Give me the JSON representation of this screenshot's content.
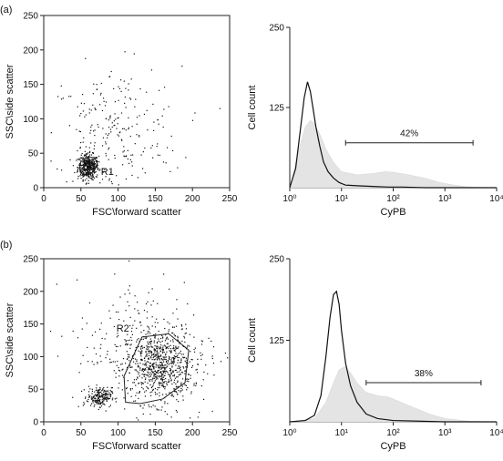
{
  "panels": [
    {
      "label": "(a)",
      "scatter": {
        "type": "scatter",
        "xlabel": "FSC\\forward scatter",
        "ylabel": "SSC\\side scatter",
        "xlim": [
          0,
          250
        ],
        "ylim": [
          0,
          250
        ],
        "xticks": [
          0,
          50,
          100,
          150,
          200,
          250
        ],
        "yticks": [
          0,
          50,
          100,
          150,
          200,
          250
        ],
        "gate_label": "R1",
        "gate_polygon": [
          [
            52,
            20
          ],
          [
            48,
            28
          ],
          [
            50,
            38
          ],
          [
            58,
            44
          ],
          [
            68,
            44
          ],
          [
            72,
            36
          ],
          [
            68,
            24
          ],
          [
            60,
            18
          ]
        ],
        "clusters": [
          {
            "cx": 60,
            "cy": 30,
            "sx": 7,
            "sy": 9,
            "n": 420
          },
          {
            "cx": 95,
            "cy": 75,
            "sx": 45,
            "sy": 50,
            "n": 260
          }
        ]
      },
      "histogram": {
        "type": "area",
        "xlabel": "CyPB",
        "ylabel": "Cell count",
        "xscale": "log",
        "xlim": [
          1,
          10000
        ],
        "ylim": [
          0,
          250
        ],
        "xticks": [
          "10⁰",
          "10¹",
          "10²",
          "10³",
          "10⁴"
        ],
        "yticks": [
          125,
          250
        ],
        "control_series": {
          "x": [
            1,
            1.3,
            1.6,
            1.9,
            2.2,
            2.5,
            2.8,
            3.2,
            3.8,
            4.5,
            5.5,
            7,
            9,
            12,
            20,
            40,
            80,
            150,
            400,
            1000,
            3000,
            10000
          ],
          "y": [
            0,
            30,
            90,
            140,
            165,
            150,
            125,
            95,
            65,
            40,
            25,
            15,
            8,
            4,
            3,
            2,
            1,
            1,
            0,
            0,
            0,
            0
          ]
        },
        "sample_series": {
          "x": [
            1,
            1.5,
            2,
            2.5,
            3,
            4,
            5,
            7,
            10,
            20,
            40,
            70,
            100,
            200,
            400,
            800,
            1500,
            3000,
            10000
          ],
          "y": [
            0,
            60,
            95,
            105,
            100,
            80,
            60,
            40,
            25,
            20,
            22,
            25,
            24,
            20,
            15,
            8,
            4,
            1,
            0
          ]
        },
        "marker": {
          "from": 12,
          "to": 3500,
          "label": "42%"
        }
      }
    },
    {
      "label": "(b)",
      "scatter": {
        "type": "scatter",
        "xlabel": "FSC\\forward scatter",
        "ylabel": "SSC\\side scatter",
        "xlim": [
          0,
          250
        ],
        "ylim": [
          0,
          250
        ],
        "xticks": [
          0,
          50,
          100,
          150,
          200,
          250
        ],
        "yticks": [
          0,
          50,
          100,
          150,
          200,
          250
        ],
        "gate_label": "R2",
        "gate_polygon": [
          [
            110,
            30
          ],
          [
            108,
            70
          ],
          [
            132,
            130
          ],
          [
            168,
            135
          ],
          [
            195,
            110
          ],
          [
            190,
            60
          ],
          [
            160,
            35
          ],
          [
            130,
            28
          ]
        ],
        "clusters": [
          {
            "cx": 155,
            "cy": 85,
            "sx": 22,
            "sy": 28,
            "n": 700
          },
          {
            "cx": 75,
            "cy": 38,
            "sx": 8,
            "sy": 7,
            "n": 200
          },
          {
            "cx": 140,
            "cy": 110,
            "sx": 50,
            "sy": 55,
            "n": 300
          }
        ]
      },
      "histogram": {
        "type": "area",
        "xlabel": "CyPB",
        "ylabel": "Cell count",
        "xscale": "log",
        "xlim": [
          1,
          10000
        ],
        "ylim": [
          0,
          250
        ],
        "xticks": [
          "10⁰",
          "10¹",
          "10²",
          "10³",
          "10⁴"
        ],
        "yticks": [
          125,
          250
        ],
        "control_series": {
          "x": [
            1,
            2,
            3,
            4,
            5,
            6,
            7,
            8,
            9,
            10,
            12,
            15,
            20,
            30,
            50,
            100,
            300,
            1000,
            10000
          ],
          "y": [
            0,
            2,
            10,
            40,
            100,
            160,
            195,
            200,
            180,
            140,
            90,
            55,
            30,
            12,
            5,
            2,
            1,
            0,
            0
          ]
        },
        "sample_series": {
          "x": [
            1,
            3,
            5,
            7,
            9,
            12,
            15,
            20,
            30,
            50,
            80,
            100,
            200,
            500,
            1000,
            3000,
            10000
          ],
          "y": [
            0,
            5,
            30,
            60,
            80,
            85,
            75,
            60,
            45,
            40,
            38,
            35,
            25,
            12,
            5,
            1,
            0
          ]
        },
        "marker": {
          "from": 30,
          "to": 5000,
          "label": "38%"
        }
      }
    }
  ]
}
